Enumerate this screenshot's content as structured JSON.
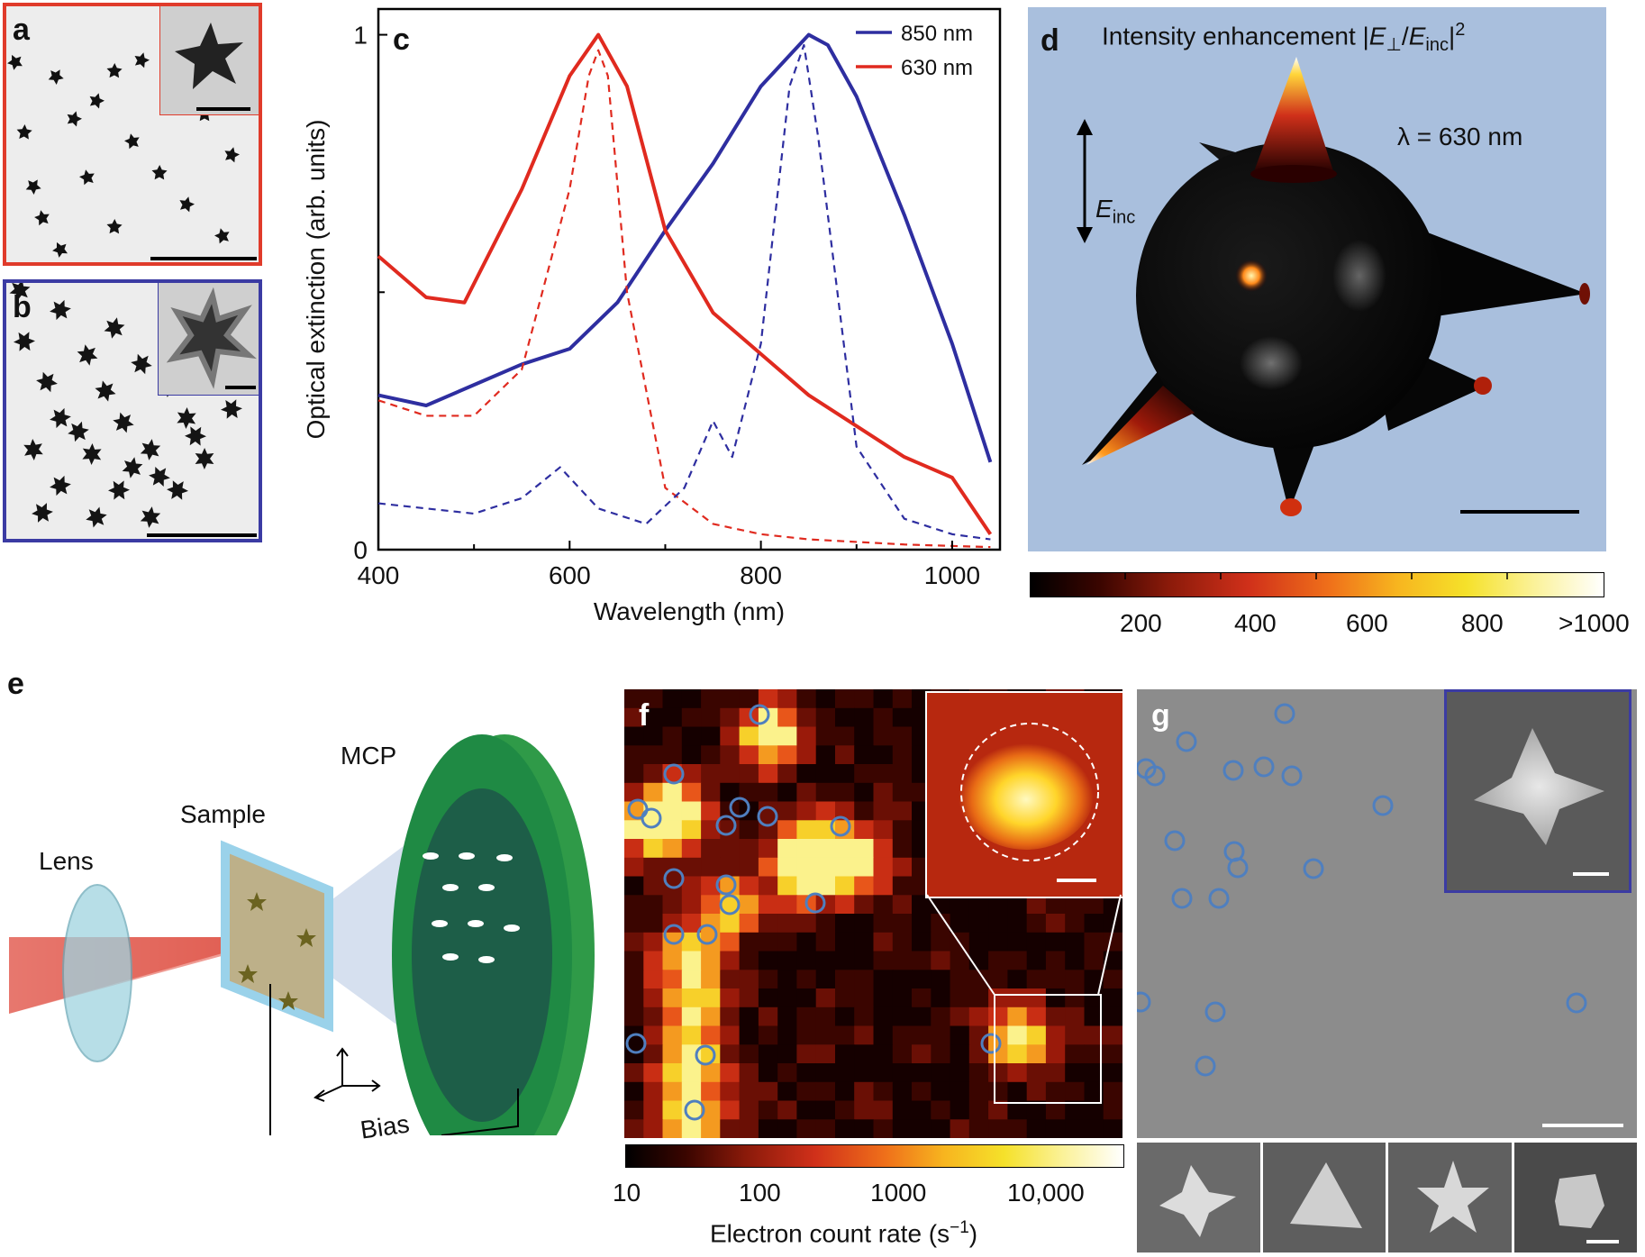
{
  "panels": {
    "a": "a",
    "b": "b",
    "c": "c",
    "d": "d",
    "e": "e",
    "f": "f",
    "g": "g"
  },
  "colors": {
    "red_series": "#e02a1f",
    "blue_series": "#2e2ea0",
    "frame_a": "#e03b2b",
    "frame_b": "#3b3ba3",
    "panel_d_bg": "#a9bfdd"
  },
  "chart_data": {
    "type": "line",
    "xlabel": "Wavelength (nm)",
    "ylabel": "Optical extinction (arb. units)",
    "xlim": [
      400,
      1050
    ],
    "ylim": [
      0,
      1.05
    ],
    "x_ticks": [
      "400",
      "600",
      "800",
      "1000"
    ],
    "y_ticks": [
      "0",
      "1"
    ],
    "legend_placement": "top-right",
    "series": [
      {
        "name": "850 nm",
        "style": "solid",
        "color": "#2e2ea0",
        "x": [
          400,
          450,
          500,
          550,
          600,
          650,
          700,
          750,
          800,
          850,
          870,
          900,
          950,
          1000,
          1040
        ],
        "y": [
          0.3,
          0.28,
          0.32,
          0.36,
          0.39,
          0.48,
          0.62,
          0.75,
          0.9,
          1.0,
          0.98,
          0.88,
          0.65,
          0.4,
          0.17
        ]
      },
      {
        "name": "630 nm",
        "style": "solid",
        "color": "#e02a1f",
        "x": [
          400,
          450,
          490,
          550,
          600,
          630,
          660,
          700,
          750,
          800,
          850,
          900,
          950,
          1000,
          1040
        ],
        "y": [
          0.57,
          0.49,
          0.48,
          0.7,
          0.92,
          1.0,
          0.9,
          0.62,
          0.46,
          0.38,
          0.3,
          0.24,
          0.18,
          0.14,
          0.03
        ]
      },
      {
        "name": "",
        "style": "dashed",
        "color": "#e02a1f",
        "x": [
          400,
          450,
          500,
          550,
          600,
          620,
          630,
          640,
          660,
          700,
          750,
          800,
          850,
          900,
          950,
          1040
        ],
        "y": [
          0.29,
          0.26,
          0.26,
          0.35,
          0.7,
          0.92,
          0.97,
          0.92,
          0.5,
          0.12,
          0.05,
          0.03,
          0.02,
          0.015,
          0.01,
          0.005
        ]
      },
      {
        "name": "",
        "style": "dashed",
        "color": "#2e2ea0",
        "x": [
          400,
          450,
          500,
          550,
          590,
          630,
          680,
          720,
          750,
          770,
          800,
          830,
          845,
          860,
          900,
          950,
          1000,
          1040
        ],
        "y": [
          0.09,
          0.08,
          0.07,
          0.1,
          0.16,
          0.08,
          0.05,
          0.12,
          0.25,
          0.18,
          0.4,
          0.9,
          0.98,
          0.8,
          0.2,
          0.06,
          0.03,
          0.02
        ]
      }
    ]
  },
  "panel_d": {
    "title_main": "Intensity enhancement |",
    "e_perp": "E",
    "sub_perp": "⊥",
    "slash": "/",
    "e_inc": "E",
    "sub_inc": "inc",
    "bar_end": "|",
    "sup": "2",
    "lambda_label": "λ = 630 nm",
    "field_label": "E",
    "field_sub": "inc",
    "colorbar_ticks": [
      "200",
      "400",
      "600",
      "800",
      ">1000"
    ]
  },
  "panel_e": {
    "lens": "Lens",
    "sample": "Sample",
    "mcp": "MCP",
    "bias": "Bias"
  },
  "panel_f": {
    "colorbar_ticks": [
      "10",
      "100",
      "1000",
      "10,000"
    ],
    "colorbar_label_main": "Electron count rate (s",
    "colorbar_label_sup": "−1",
    "colorbar_label_end": ")"
  }
}
